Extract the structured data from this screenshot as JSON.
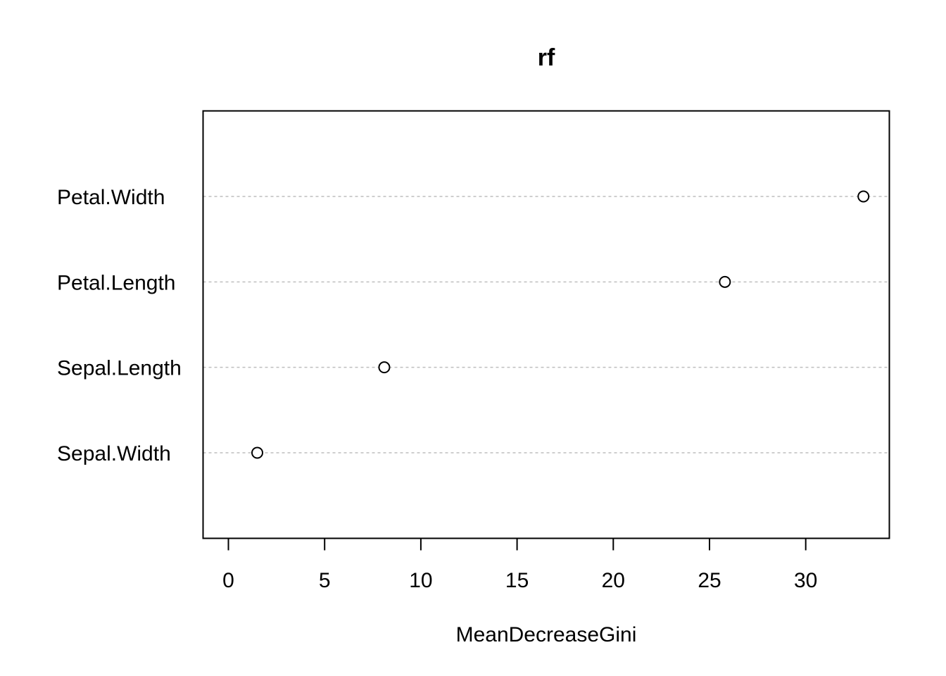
{
  "chart_data": {
    "type": "scatter",
    "title": "rf",
    "xlabel": "MeanDecreaseGini",
    "ylabel": "",
    "categories": [
      "Petal.Width",
      "Petal.Length",
      "Sepal.Length",
      "Sepal.Width"
    ],
    "values": [
      33.0,
      25.8,
      8.1,
      1.5
    ],
    "x_ticks": [
      "0",
      "5",
      "10",
      "15",
      "20",
      "25",
      "30"
    ],
    "xlim": [
      -1.3,
      34.4
    ],
    "grid": "dotted horizontal guide lines per category",
    "legend": "none",
    "colors": {
      "point_stroke": "#000000",
      "guide_line": "#bebebe"
    }
  }
}
